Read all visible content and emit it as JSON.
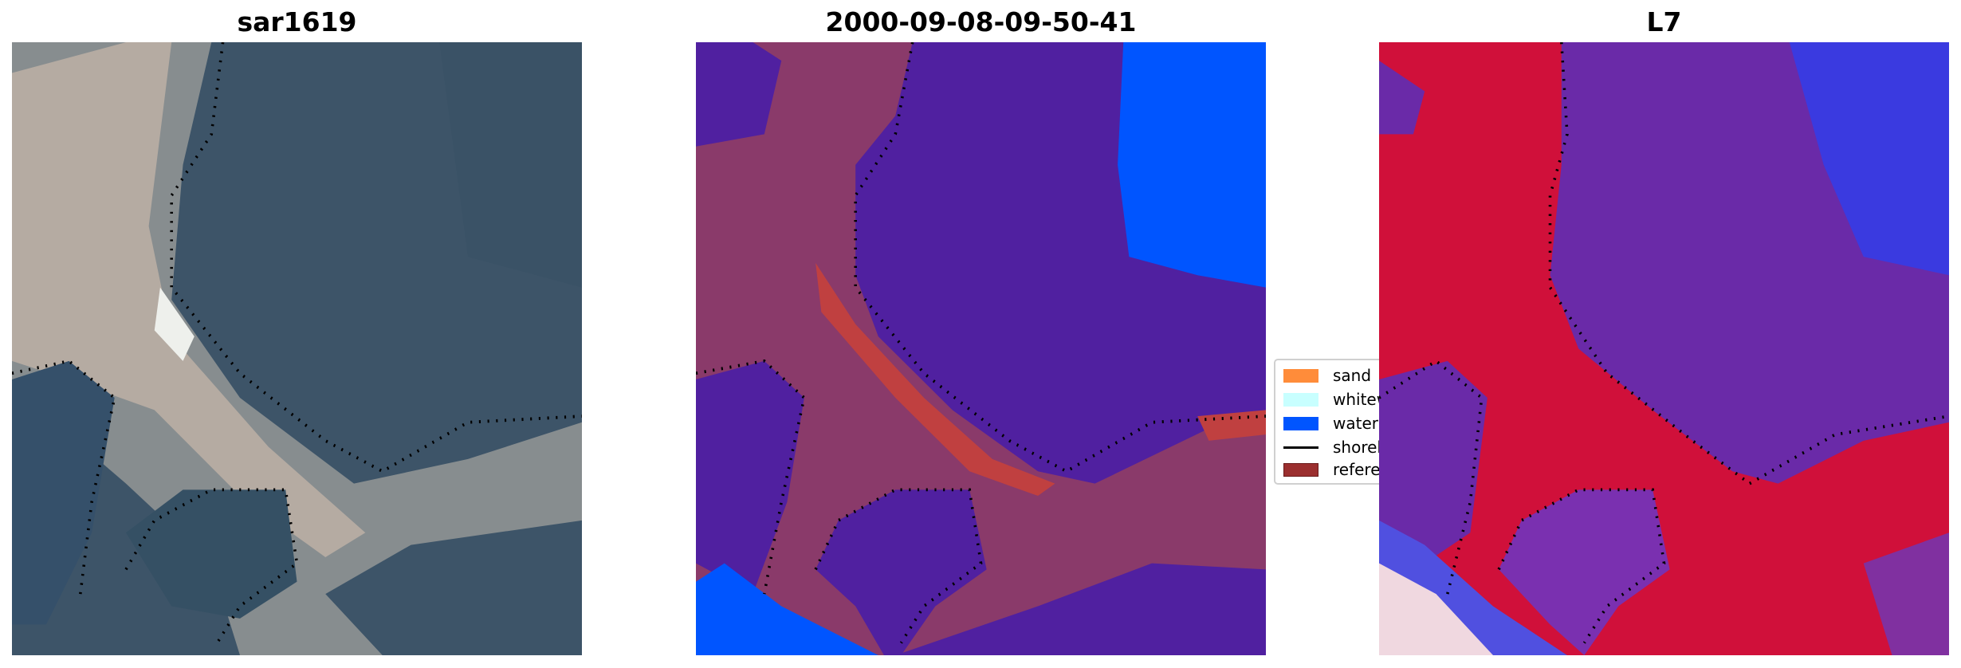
{
  "panels": [
    {
      "title": "sar1619"
    },
    {
      "title": "2000-09-08-09-50-41"
    },
    {
      "title": "L7"
    }
  ],
  "legend": {
    "items": [
      {
        "label": "sand",
        "color": "#ff8c3a",
        "kind": "patch"
      },
      {
        "label": "whitewater",
        "color": "#c8ffff",
        "kind": "patch"
      },
      {
        "label": "water",
        "color": "#0055ff",
        "kind": "patch"
      },
      {
        "label": "shoreline",
        "color": "#000000",
        "kind": "line"
      },
      {
        "label": "reference shoreline",
        "color": "#9b2f2f",
        "kind": "patch"
      }
    ]
  },
  "colors": {
    "land_overlay": "#8a3a6a",
    "water_overlay": "#5020a0",
    "l7_land": "#d0103a",
    "l7_water": "#6a2aa8"
  }
}
